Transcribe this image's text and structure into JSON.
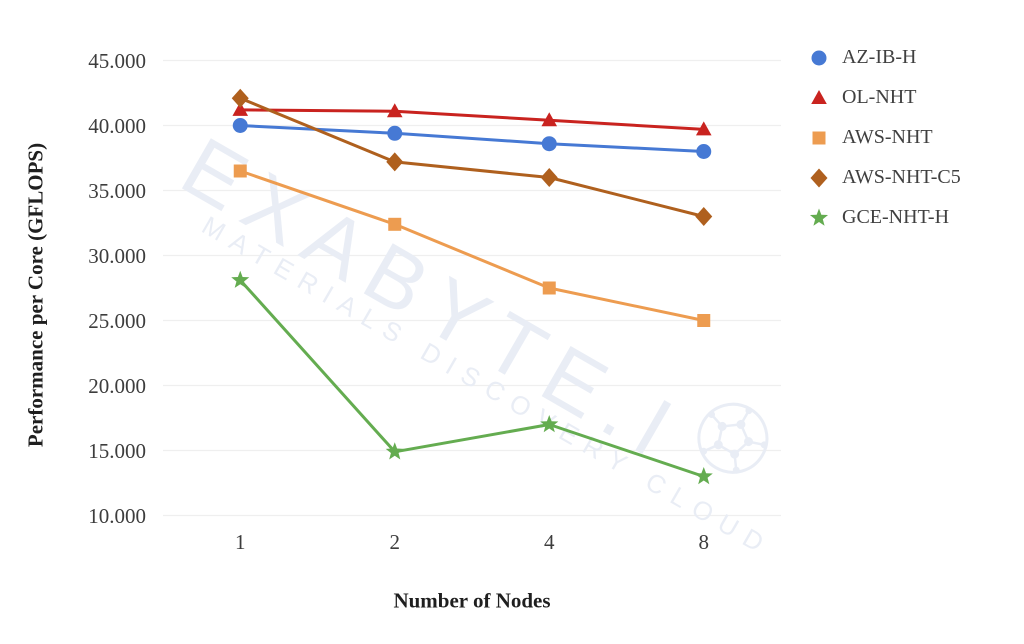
{
  "chart_data": {
    "type": "line",
    "title": "",
    "xlabel": "Number of Nodes",
    "ylabel": "Performance per Core (GFLOPS)",
    "x_categories": [
      "1",
      "2",
      "4",
      "8"
    ],
    "y_tick_values": [
      45,
      40,
      35,
      30,
      25,
      20,
      15,
      10
    ],
    "y_tick_labels": [
      "45.000",
      "40.000",
      "35.000",
      "30.000",
      "25.000",
      "20.000",
      "15.000",
      "10.000"
    ],
    "ylim": [
      10,
      45
    ],
    "grid": "horizontal-only",
    "legend_position": "right",
    "series": [
      {
        "name": "AZ-IB-H",
        "marker": "circle",
        "color": "#4679D4",
        "values": [
          40.0,
          39.4,
          38.6,
          38.0
        ]
      },
      {
        "name": "OL-NHT",
        "marker": "triangle",
        "color": "#C9231F",
        "values": [
          41.2,
          41.1,
          40.4,
          39.7
        ]
      },
      {
        "name": "AWS-NHT",
        "marker": "square",
        "color": "#ED9C50",
        "values": [
          36.5,
          32.4,
          27.5,
          25.0
        ]
      },
      {
        "name": "AWS-NHT-C5",
        "marker": "diamond",
        "color": "#AF601E",
        "values": [
          42.1,
          37.2,
          36.0,
          33.0
        ]
      },
      {
        "name": "GCE-NHT-H",
        "marker": "star",
        "color": "#64AC50",
        "values": [
          28.1,
          14.9,
          17.0,
          13.0
        ]
      }
    ]
  },
  "watermark": {
    "line1": "EXABYTE.I",
    "line2": "MATERIALS DISCOVERY CLOUD",
    "color": "#E9EDF5"
  }
}
